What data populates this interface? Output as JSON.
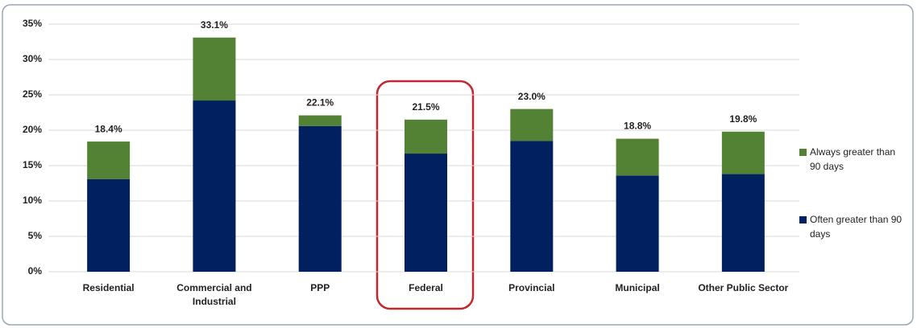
{
  "chart_data": {
    "type": "stacked_bar",
    "categories": [
      "Residential",
      "Commercial and Industrial",
      "PPP",
      "Federal",
      "Provincial",
      "Municipal",
      "Other Public Sector"
    ],
    "series": [
      {
        "name": "Often greater than 90 days",
        "color": "#002060",
        "values": [
          13.1,
          24.2,
          20.6,
          16.7,
          18.5,
          13.6,
          13.8
        ]
      },
      {
        "name": "Always greater than 90 days",
        "color": "#548235",
        "values": [
          5.3,
          8.9,
          1.5,
          4.8,
          4.5,
          5.2,
          6.0
        ]
      }
    ],
    "totals": [
      18.4,
      33.1,
      22.1,
      21.5,
      23.0,
      18.8,
      19.8
    ],
    "total_labels": [
      "18.4%",
      "33.1%",
      "22.1%",
      "21.5%",
      "23.0%",
      "18.8%",
      "19.8%"
    ],
    "ylim": [
      0,
      35
    ],
    "yticks": [
      {
        "value": 0,
        "label": "0%"
      },
      {
        "value": 5,
        "label": "5%"
      },
      {
        "value": 10,
        "label": "10%"
      },
      {
        "value": 15,
        "label": "15%"
      },
      {
        "value": 20,
        "label": "20%"
      },
      {
        "value": 25,
        "label": "25%"
      },
      {
        "value": 30,
        "label": "30%"
      },
      {
        "value": 35,
        "label": "35%"
      }
    ],
    "grid": true
  }
}
